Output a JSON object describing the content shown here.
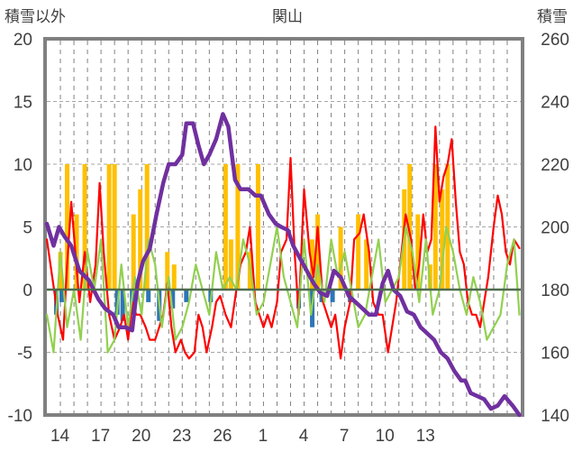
{
  "chart_data": {
    "type": "line",
    "title": "関山",
    "ylabel_left": "積雪以外",
    "ylabel_right": "積雪",
    "left_axis": {
      "ylim": [
        -10,
        20
      ],
      "ticks": [
        "20",
        "15",
        "10",
        "5",
        "0",
        "-5",
        "-10"
      ]
    },
    "right_axis": {
      "ylim": [
        140,
        260
      ],
      "ticks": [
        "260",
        "240",
        "220",
        "200",
        "180",
        "160",
        "140"
      ]
    },
    "x_ticks": [
      "14",
      "17",
      "20",
      "23",
      "26",
      "1",
      "4",
      "7",
      "10",
      "13"
    ],
    "grid": "horizontal dashed + vertical dashed per day",
    "legend": "none",
    "series": [
      {
        "axis": "left",
        "style": "bar",
        "color": "#FFC000",
        "points": [
          [
            1,
            3
          ],
          [
            1.5,
            10
          ],
          [
            2.2,
            6
          ],
          [
            2.8,
            10
          ],
          [
            4.6,
            10
          ],
          [
            5,
            10
          ],
          [
            6.4,
            6
          ],
          [
            6.9,
            8
          ],
          [
            7.4,
            10
          ],
          [
            8.9,
            3
          ],
          [
            9.4,
            2
          ],
          [
            13.2,
            10
          ],
          [
            13.6,
            4
          ],
          [
            14.1,
            10
          ],
          [
            15,
            3
          ],
          [
            15.6,
            10
          ],
          [
            19.6,
            4
          ],
          [
            20,
            6
          ],
          [
            21.7,
            5
          ],
          [
            23,
            6
          ],
          [
            23.6,
            4
          ],
          [
            26.4,
            8
          ],
          [
            26.8,
            10
          ],
          [
            27.4,
            6
          ],
          [
            28.3,
            2
          ],
          [
            28.7,
            10
          ],
          [
            29.2,
            8
          ],
          [
            29.6,
            10
          ]
        ]
      },
      {
        "axis": "left",
        "style": "bar",
        "color": "#2E75B6",
        "points": [
          [
            0.7,
            -2
          ],
          [
            1.1,
            -1
          ],
          [
            5.2,
            -2
          ],
          [
            5.6,
            -2.5
          ],
          [
            6.3,
            -2
          ],
          [
            7.5,
            -1
          ],
          [
            8.3,
            -2.5
          ],
          [
            9.3,
            -1.5
          ],
          [
            10.3,
            -1
          ],
          [
            12.1,
            -1
          ],
          [
            18.6,
            -1.5
          ],
          [
            19.6,
            -3
          ],
          [
            20.3,
            -1
          ],
          [
            21.1,
            -1
          ],
          [
            22.4,
            -1
          ]
        ]
      },
      {
        "axis": "left",
        "style": "line",
        "color": "#FF0000",
        "points": [
          [
            0,
            4
          ],
          [
            0.4,
            1
          ],
          [
            0.8,
            -2
          ],
          [
            1.2,
            -4
          ],
          [
            1.5,
            2
          ],
          [
            1.8,
            7
          ],
          [
            2.1,
            3
          ],
          [
            2.4,
            -1
          ],
          [
            2.8,
            3
          ],
          [
            3.2,
            -1
          ],
          [
            3.6,
            2
          ],
          [
            3.9,
            8.5
          ],
          [
            4.2,
            3
          ],
          [
            4.6,
            -2
          ],
          [
            5,
            -4
          ],
          [
            5.4,
            -3
          ],
          [
            5.7,
            -2
          ],
          [
            6,
            -4
          ],
          [
            6.3,
            -1
          ],
          [
            6.6,
            -2
          ],
          [
            6.9,
            -2
          ],
          [
            7.3,
            -3
          ],
          [
            7.6,
            -4
          ],
          [
            8,
            -4
          ],
          [
            8.3,
            -3
          ],
          [
            8.6,
            -2
          ],
          [
            8.9,
            0.5
          ],
          [
            9.2,
            -3
          ],
          [
            9.5,
            -5
          ],
          [
            9.9,
            -4
          ],
          [
            10.2,
            -5
          ],
          [
            10.5,
            -5.5
          ],
          [
            10.9,
            -5
          ],
          [
            11.2,
            -2
          ],
          [
            11.5,
            -3
          ],
          [
            11.8,
            -5
          ],
          [
            12.2,
            -3
          ],
          [
            12.5,
            -1
          ],
          [
            12.8,
            -0.5
          ],
          [
            13.2,
            -2
          ],
          [
            13.6,
            -3
          ],
          [
            14,
            0
          ],
          [
            14.3,
            2
          ],
          [
            14.7,
            3
          ],
          [
            15,
            5
          ],
          [
            15.4,
            -1
          ],
          [
            15.7,
            -2
          ],
          [
            16,
            -3
          ],
          [
            16.3,
            -2
          ],
          [
            16.6,
            -3
          ],
          [
            17,
            -1
          ],
          [
            17.3,
            3
          ],
          [
            17.7,
            4
          ],
          [
            18,
            10.5
          ],
          [
            18.3,
            3
          ],
          [
            18.6,
            -2
          ],
          [
            19,
            8
          ],
          [
            19.4,
            3
          ],
          [
            19.7,
            1
          ],
          [
            20,
            5
          ],
          [
            20.4,
            -1
          ],
          [
            20.7,
            -2
          ],
          [
            21,
            -3
          ],
          [
            21.3,
            -2
          ],
          [
            21.7,
            -5.5
          ],
          [
            22,
            -3
          ],
          [
            22.4,
            -1
          ],
          [
            22.7,
            4
          ],
          [
            23.1,
            4.5
          ],
          [
            23.4,
            6
          ],
          [
            23.8,
            3
          ],
          [
            24.1,
            -1
          ],
          [
            24.5,
            -2
          ],
          [
            24.8,
            -2
          ],
          [
            25.2,
            -5
          ],
          [
            25.5,
            -3
          ],
          [
            25.8,
            -1
          ],
          [
            26.2,
            3
          ],
          [
            26.5,
            6
          ],
          [
            26.9,
            4
          ],
          [
            27.2,
            0
          ],
          [
            27.5,
            2
          ],
          [
            27.8,
            6
          ],
          [
            28.1,
            3
          ],
          [
            28.4,
            4
          ],
          [
            28.7,
            13
          ],
          [
            29,
            7
          ],
          [
            29.3,
            9
          ],
          [
            29.6,
            10
          ],
          [
            29.9,
            12
          ],
          [
            30.2,
            7
          ],
          [
            30.5,
            3
          ],
          [
            30.8,
            2
          ],
          [
            31.1,
            -1
          ],
          [
            31.4,
            -2
          ],
          [
            31.7,
            -2
          ],
          [
            32,
            -3
          ],
          [
            32.3,
            -1
          ],
          [
            32.6,
            1
          ],
          [
            33,
            5
          ],
          [
            33.3,
            7.5
          ],
          [
            33.6,
            6
          ],
          [
            33.9,
            3
          ],
          [
            34.2,
            2
          ],
          [
            34.5,
            4
          ],
          [
            34.9,
            3.3
          ]
        ]
      },
      {
        "axis": "left",
        "style": "line",
        "color": "#92D050",
        "points": [
          [
            0,
            -2
          ],
          [
            0.5,
            -5
          ],
          [
            1,
            3
          ],
          [
            1.5,
            -3
          ],
          [
            2,
            0
          ],
          [
            2.5,
            -4
          ],
          [
            3,
            3
          ],
          [
            3.5,
            0
          ],
          [
            4,
            4
          ],
          [
            4.5,
            -5
          ],
          [
            5,
            -4
          ],
          [
            5.5,
            2
          ],
          [
            6,
            -3
          ],
          [
            6.5,
            1
          ],
          [
            7,
            -2
          ],
          [
            7.5,
            4
          ],
          [
            8,
            2
          ],
          [
            8.5,
            -3
          ],
          [
            9,
            1
          ],
          [
            9.5,
            -4
          ],
          [
            10,
            -3
          ],
          [
            10.5,
            -1
          ],
          [
            11,
            2
          ],
          [
            11.5,
            0
          ],
          [
            12,
            -2
          ],
          [
            12.5,
            3
          ],
          [
            13,
            0
          ],
          [
            13.5,
            1
          ],
          [
            14,
            0
          ],
          [
            14.5,
            4
          ],
          [
            15,
            2
          ],
          [
            15.5,
            -2
          ],
          [
            16,
            -1
          ],
          [
            16.5,
            2
          ],
          [
            17,
            5
          ],
          [
            17.5,
            1
          ],
          [
            18,
            -1
          ],
          [
            18.5,
            -3
          ],
          [
            19,
            4
          ],
          [
            19.5,
            -2
          ],
          [
            20,
            2
          ],
          [
            20.5,
            -1
          ],
          [
            21,
            4
          ],
          [
            21.5,
            1
          ],
          [
            22,
            3
          ],
          [
            22.5,
            0
          ],
          [
            23,
            -3
          ],
          [
            23.5,
            -2
          ],
          [
            24,
            1
          ],
          [
            24.5,
            4
          ],
          [
            25,
            -1
          ],
          [
            25.5,
            0
          ],
          [
            26,
            1
          ],
          [
            26.5,
            5
          ],
          [
            27,
            3
          ],
          [
            27.5,
            -1
          ],
          [
            28,
            4
          ],
          [
            28.5,
            -2
          ],
          [
            29,
            0
          ],
          [
            29.5,
            5
          ],
          [
            30,
            3
          ],
          [
            30.5,
            0
          ],
          [
            31,
            -2
          ],
          [
            31.5,
            1
          ],
          [
            32,
            -1
          ],
          [
            32.5,
            -4
          ],
          [
            33,
            -3
          ],
          [
            33.5,
            -2
          ],
          [
            34,
            2
          ],
          [
            34.5,
            4
          ],
          [
            34.9,
            -2
          ]
        ]
      },
      {
        "axis": "right",
        "style": "thick-line",
        "color": "#7030A0",
        "points": [
          [
            0,
            201
          ],
          [
            0.5,
            194
          ],
          [
            0.9,
            200
          ],
          [
            1.3,
            197
          ],
          [
            1.8,
            194
          ],
          [
            2.4,
            186
          ],
          [
            3.1,
            183
          ],
          [
            3.8,
            177
          ],
          [
            4.3,
            174
          ],
          [
            4.9,
            172
          ],
          [
            5.3,
            168
          ],
          [
            5.8,
            168
          ],
          [
            6.3,
            167
          ],
          [
            6.7,
            182
          ],
          [
            7.1,
            189
          ],
          [
            7.6,
            193
          ],
          [
            8.1,
            204
          ],
          [
            8.6,
            214
          ],
          [
            9,
            220
          ],
          [
            9.5,
            220
          ],
          [
            10.0,
            223
          ],
          [
            10.3,
            233
          ],
          [
            10.8,
            233
          ],
          [
            11.2,
            226
          ],
          [
            11.6,
            220
          ],
          [
            12,
            223
          ],
          [
            12.5,
            228
          ],
          [
            13,
            236
          ],
          [
            13.4,
            232
          ],
          [
            13.9,
            215
          ],
          [
            14.3,
            212
          ],
          [
            14.9,
            212
          ],
          [
            15.4,
            210
          ],
          [
            15.8,
            210
          ],
          [
            16.4,
            204
          ],
          [
            16.9,
            201
          ],
          [
            17.3,
            200
          ],
          [
            17.8,
            199
          ],
          [
            18.2,
            194
          ],
          [
            18.7,
            190
          ],
          [
            19.2,
            186
          ],
          [
            19.7,
            182
          ],
          [
            20.2,
            179
          ],
          [
            20.7,
            178
          ],
          [
            21.2,
            186
          ],
          [
            21.7,
            184
          ],
          [
            22.3,
            178
          ],
          [
            22.8,
            176
          ],
          [
            23.3,
            174
          ],
          [
            23.8,
            172
          ],
          [
            24.3,
            172
          ],
          [
            24.8,
            182
          ],
          [
            25.2,
            186
          ],
          [
            25.6,
            180
          ],
          [
            26.1,
            178
          ],
          [
            26.6,
            173
          ],
          [
            27.1,
            172
          ],
          [
            27.6,
            168
          ],
          [
            28.1,
            166
          ],
          [
            28.6,
            164
          ],
          [
            29.1,
            160
          ],
          [
            29.6,
            158
          ],
          [
            30.1,
            154
          ],
          [
            30.6,
            151
          ],
          [
            30.9,
            151
          ],
          [
            31.3,
            147
          ],
          [
            31.8,
            146
          ],
          [
            32.3,
            145
          ],
          [
            32.8,
            142
          ],
          [
            33.3,
            143
          ],
          [
            33.8,
            146
          ],
          [
            34.4,
            143
          ],
          [
            34.9,
            140
          ]
        ]
      }
    ]
  }
}
